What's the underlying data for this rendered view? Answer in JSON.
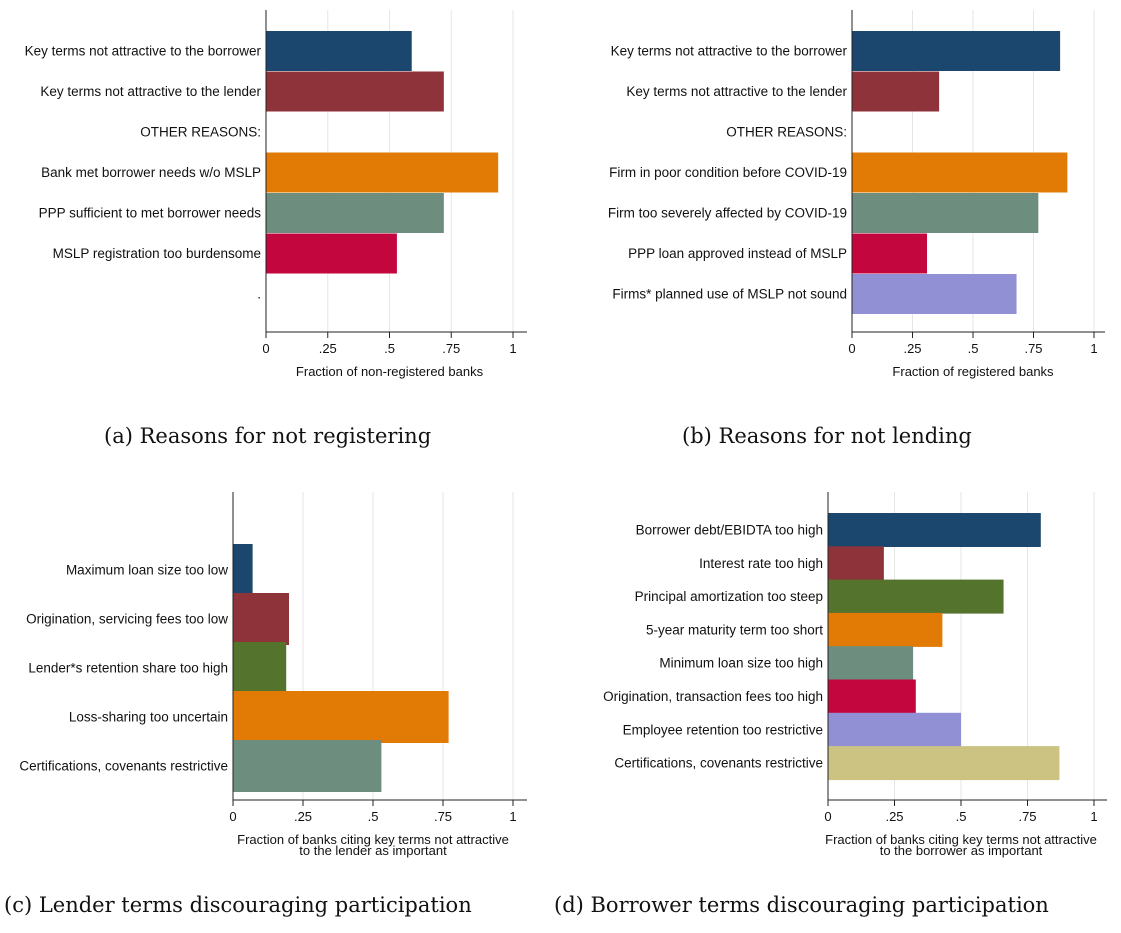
{
  "chart_data": [
    {
      "type": "bar",
      "orientation": "horizontal",
      "categories": [
        "Key terms not attractive to the borrower",
        "Key terms not attractive to the lender",
        "OTHER REASONS:",
        "Bank met borrower needs w/o MSLP",
        "PPP sufficient to met borrower needs",
        "MSLP registration too burdensome",
        "."
      ],
      "values": [
        0.59,
        0.72,
        null,
        0.94,
        0.72,
        0.53,
        null
      ],
      "colors": [
        "#1b466e",
        "#8f333b",
        null,
        "#e27b06",
        "#6d8e7e",
        "#c3073e",
        null
      ],
      "xlabel": "Fraction of non-registered banks",
      "xlim": [
        0,
        1
      ],
      "xticks": [
        0,
        0.25,
        0.5,
        0.75,
        1
      ],
      "xtick_labels": [
        "0",
        ".25",
        ".5",
        ".75",
        "1"
      ],
      "grid": true,
      "caption": "(a) Reasons for not registering"
    },
    {
      "type": "bar",
      "orientation": "horizontal",
      "categories": [
        "Key terms not attractive to the borrower",
        "Key terms not attractive to the lender",
        "OTHER REASONS:",
        "Firm in poor condition before COVID-19",
        "Firm too severely affected by COVID-19",
        "PPP loan approved instead of MSLP",
        "Firms* planned use of MSLP not sound"
      ],
      "values": [
        0.86,
        0.36,
        null,
        0.89,
        0.77,
        0.31,
        0.68
      ],
      "colors": [
        "#1b466e",
        "#8f333b",
        null,
        "#e27b06",
        "#6d8e7e",
        "#c3073e",
        "#9290d4"
      ],
      "xlabel": "Fraction of registered banks",
      "xlim": [
        0,
        1
      ],
      "xticks": [
        0,
        0.25,
        0.5,
        0.75,
        1
      ],
      "xtick_labels": [
        "0",
        ".25",
        ".5",
        ".75",
        "1"
      ],
      "grid": true,
      "caption": "(b) Reasons for not lending"
    },
    {
      "type": "bar",
      "orientation": "horizontal",
      "categories": [
        "Maximum loan size too low",
        "Origination, servicing fees too low",
        "Lender*s retention share too high",
        "Loss-sharing too uncertain",
        "Certifications, covenants restrictive"
      ],
      "values": [
        0.07,
        0.2,
        0.19,
        0.77,
        0.53
      ],
      "colors": [
        "#1b466e",
        "#8f333b",
        "#54732d",
        "#e27b06",
        "#6d8e7e"
      ],
      "xlabel": "Fraction of banks citing key terms not attractive to the lender as important",
      "xlabel_lines": [
        "Fraction of banks citing key terms not attractive",
        "to the lender as important"
      ],
      "xlim": [
        0,
        1
      ],
      "xticks": [
        0,
        0.25,
        0.5,
        0.75,
        1
      ],
      "xtick_labels": [
        "0",
        ".25",
        ".5",
        ".75",
        "1"
      ],
      "grid": true,
      "caption": "(c) Lender terms discouraging participation"
    },
    {
      "type": "bar",
      "orientation": "horizontal",
      "categories": [
        "Borrower debt/EBIDTA too high",
        "Interest rate too high",
        "Principal amortization too steep",
        "5-year maturity term too short",
        "Minimum loan size too high",
        "Origination, transaction fees too high",
        "Employee retention too restrictive",
        "Certifications, covenants restrictive"
      ],
      "values": [
        0.8,
        0.21,
        0.66,
        0.43,
        0.32,
        0.33,
        0.5,
        0.87
      ],
      "colors": [
        "#1b466e",
        "#8f333b",
        "#54732d",
        "#e27b06",
        "#6d8e7e",
        "#c3073e",
        "#9290d4",
        "#ccc383"
      ],
      "xlabel": "Fraction of banks citing key terms not attractive to the borrower as important",
      "xlabel_lines": [
        "Fraction of banks citing key terms not attractive",
        "to the borrower as important"
      ],
      "xlim": [
        0,
        1
      ],
      "xticks": [
        0,
        0.25,
        0.5,
        0.75,
        1
      ],
      "xtick_labels": [
        "0",
        ".25",
        ".5",
        ".75",
        "1"
      ],
      "grid": true,
      "caption": "(d) Borrower terms discouraging participation"
    }
  ]
}
